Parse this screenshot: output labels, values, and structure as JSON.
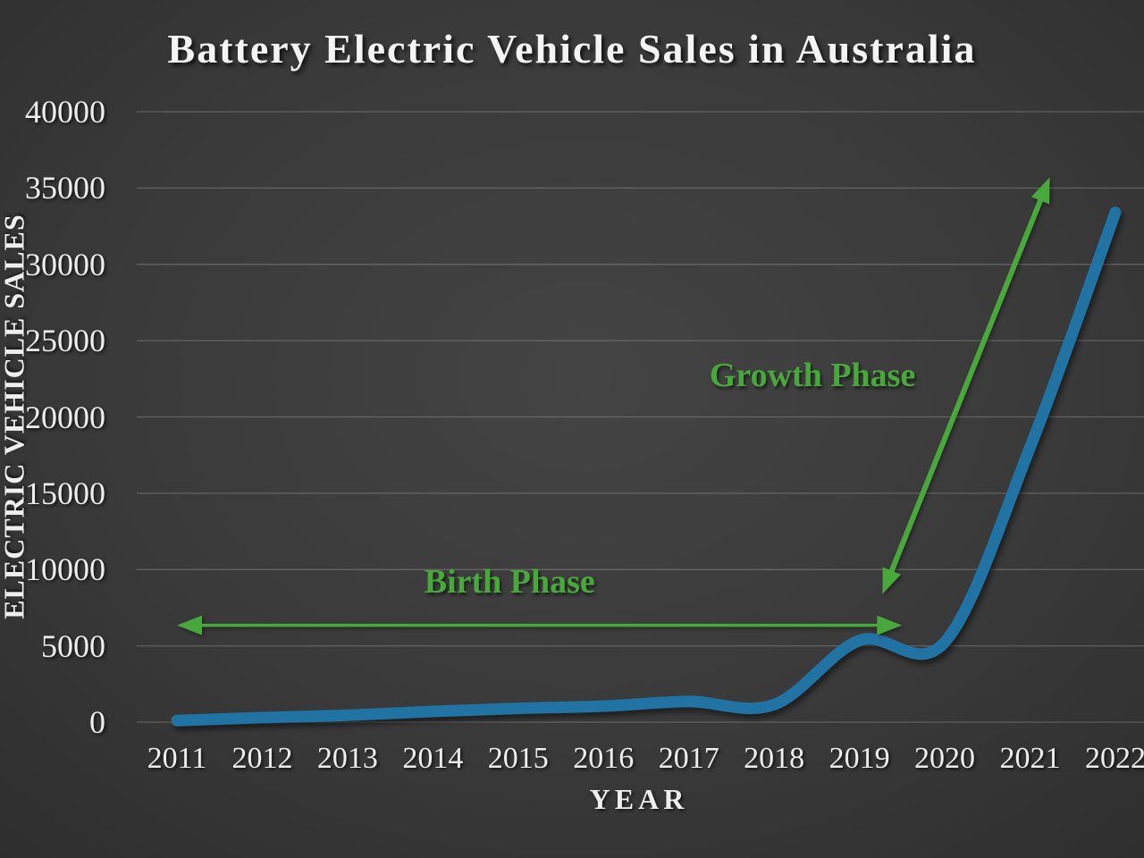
{
  "slide": {
    "title": "Battery Electric Vehicle Sales in Australia"
  },
  "colors": {
    "line_blue": "#2073a3",
    "annotation_green": "#48a83c",
    "text": "#f2f2f2",
    "background_dark": "#2f2f2f",
    "gridline": "rgba(205,205,205,0.28)"
  },
  "chart_data": {
    "type": "line",
    "title": "Battery Electric Vehicle Sales in Australia",
    "xlabel": "YEAR",
    "ylabel": "ELECTRIC VEHICLE SALES",
    "x": [
      2011,
      2012,
      2013,
      2014,
      2015,
      2016,
      2017,
      2018,
      2019,
      2020,
      2021,
      2022
    ],
    "values": [
      100,
      300,
      450,
      700,
      900,
      1050,
      1350,
      1150,
      5350,
      5250,
      18000,
      33400
    ],
    "ylim": [
      0,
      40000
    ],
    "yticks": [
      0,
      5000,
      10000,
      15000,
      20000,
      25000,
      30000,
      35000,
      40000
    ],
    "grid": true,
    "legend": "none",
    "smoothed_line": true,
    "annotations": [
      {
        "id": "birth-phase",
        "text": "Birth Phase",
        "label_at": {
          "year": 2014.9,
          "value": 9200
        },
        "arrow": {
          "from": {
            "year": 2011.0,
            "value": 6350
          },
          "to": {
            "year": 2019.5,
            "value": 6350
          },
          "double_headed": true,
          "shaft_width": 3.5
        }
      },
      {
        "id": "growth-phase",
        "text": "Growth Phase",
        "label_at": {
          "year": 2018.45,
          "value": 22700
        },
        "arrow": {
          "from": {
            "year": 2019.27,
            "value": 8400
          },
          "to": {
            "year": 2021.23,
            "value": 35700
          },
          "double_headed": true,
          "shaft_width": 6
        }
      }
    ]
  }
}
